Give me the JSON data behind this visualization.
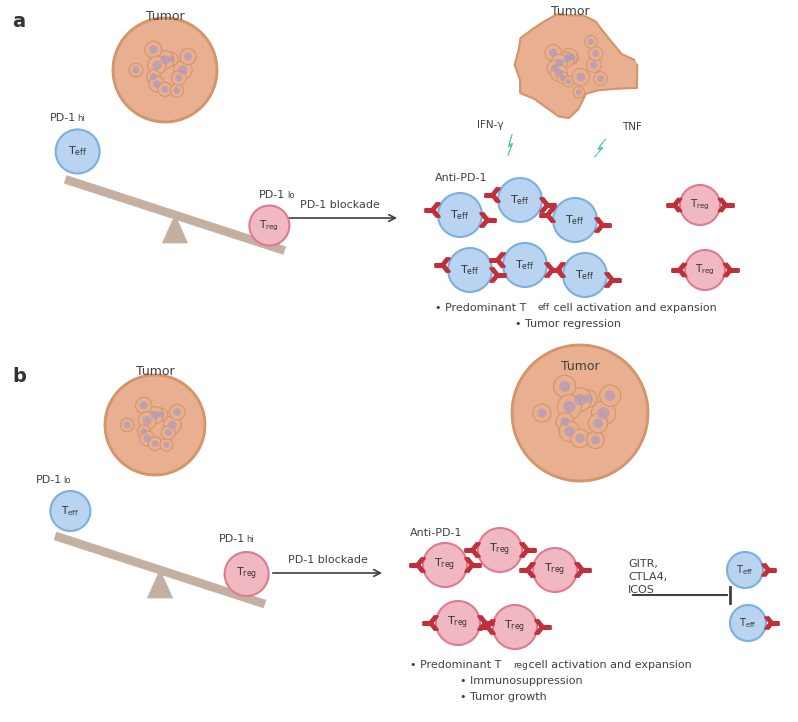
{
  "bg_color": "#ffffff",
  "tumor_color_outer": "#d4956a",
  "tumor_color_inner": "#c47a50",
  "tumor_cell_color": "#e8b090",
  "tumor_nucleus_color": "#b09ab8",
  "teff_fill": "#b8d4f0",
  "teff_border": "#7ab0e0",
  "treg_fill": "#f0b8c0",
  "treg_border": "#e07a90",
  "antibody_color": "#c0303a",
  "lightning_color": "#50c8b0",
  "seesaw_color": "#c4b0a0",
  "arrow_color": "#404040",
  "label_color": "#404040",
  "panel_a_label": "a",
  "panel_b_label": "b",
  "pd1hi_label": "PD-1",
  "pd1hi_sup": "hi",
  "pd1lo_label": "PD-1",
  "pd1lo_sup": "lo",
  "blockade_label": "PD-1 blockade",
  "tumor_label": "Tumor",
  "anti_pd1_label": "Anti-PD-1",
  "ifn_label": "IFN-γ",
  "tnf_label": "TNF",
  "gitr_label": "GITR,\nCTLA4,\nICOS",
  "bullet1a": "• Predominant T",
  "bullet1a_sub": "eff",
  "bullet1a_rest": " cell activation and expansion",
  "bullet2a": "• Tumor regression",
  "bullet1b": "• Predominant T",
  "bullet1b_sub": "reg",
  "bullet1b_rest": " cell activation and expansion",
  "bullet2b": "• Immunosuppression",
  "bullet3b": "• Tumor growth"
}
